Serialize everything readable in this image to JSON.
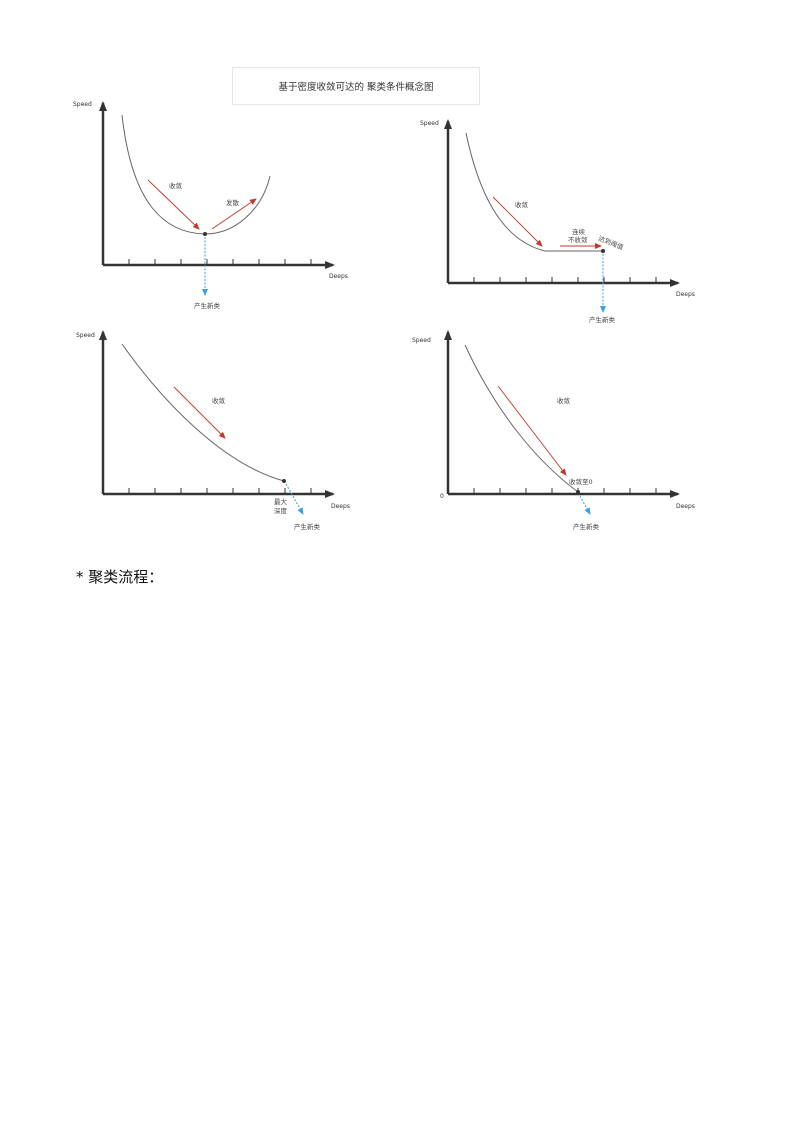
{
  "figure": {
    "title": "基于密度收敛可达的 聚类条件概念图",
    "panels": [
      {
        "y_axis_label": "Speed",
        "x_axis_label": "Deeps",
        "labels": {
          "converge": "收敛",
          "diverge": "发散",
          "new_class": "产生新类"
        }
      },
      {
        "y_axis_label": "Speed",
        "x_axis_label": "Deeps",
        "labels": {
          "converge": "收敛",
          "continuous_line1": "连续",
          "continuous_line2": "不收敛",
          "threshold": "达到阈值",
          "new_class": "产生新类"
        }
      },
      {
        "y_axis_label": "Speed",
        "x_axis_label": "Deeps",
        "labels": {
          "converge": "收敛",
          "max_line1": "最大",
          "max_line2": "深度",
          "new_class": "产生新类"
        }
      },
      {
        "y_axis_label": "Speed",
        "x_axis_label": "Deeps",
        "labels": {
          "converge": "收敛",
          "converge_zero": "收敛至0",
          "origin": "0",
          "new_class": "产生新类"
        }
      }
    ]
  },
  "section_heading": "* 聚类流程：",
  "colors": {
    "axis": "#333333",
    "curve": "#555555",
    "arrow_red": "#c0392b",
    "arrow_blue": "#3aa0e0"
  }
}
